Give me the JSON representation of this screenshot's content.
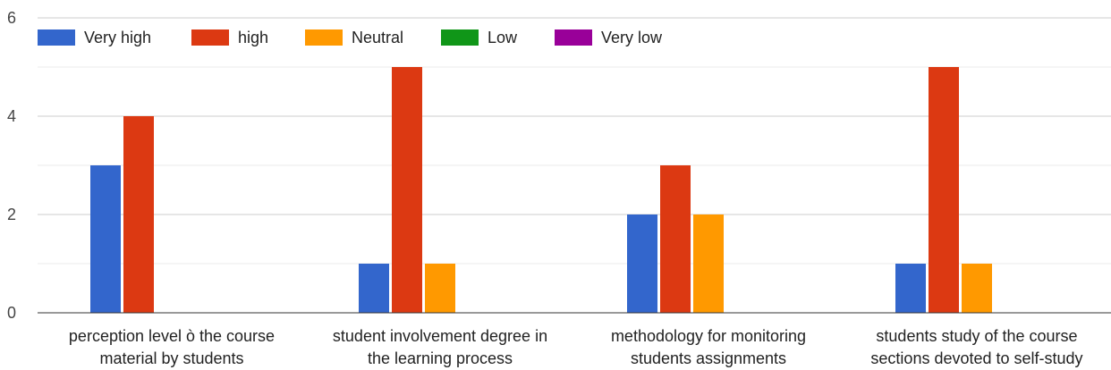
{
  "chart_data": {
    "type": "bar",
    "categories": [
      "perception level ò the course material by students",
      "student involvement degree in the learning process",
      "methodology for monitoring students assignments",
      "students study of the course sections devoted to self-study"
    ],
    "category_lines": [
      [
        "perception level ò the course",
        "material by students"
      ],
      [
        "student involvement degree in",
        "the learning process"
      ],
      [
        "methodology for monitoring",
        "students assignments"
      ],
      [
        "students study of the course",
        "sections devoted to self-study"
      ]
    ],
    "series": [
      {
        "name": "Very high",
        "color": "#3366cc",
        "values": [
          3,
          1,
          2,
          1
        ]
      },
      {
        "name": "high",
        "color": "#dc3912",
        "values": [
          4,
          5,
          3,
          5
        ]
      },
      {
        "name": "Neutral",
        "color": "#ff9900",
        "values": [
          0,
          1,
          2,
          1
        ]
      },
      {
        "name": "Low",
        "color": "#109618",
        "values": [
          0,
          0,
          0,
          0
        ]
      },
      {
        "name": "Very low",
        "color": "#990099",
        "values": [
          0,
          0,
          0,
          0
        ]
      }
    ],
    "y_ticks": [
      0,
      2,
      4,
      6
    ],
    "ylim": [
      0,
      6
    ],
    "grid": true,
    "legend_position": "top-left",
    "title": "",
    "xlabel": "",
    "ylabel": ""
  }
}
